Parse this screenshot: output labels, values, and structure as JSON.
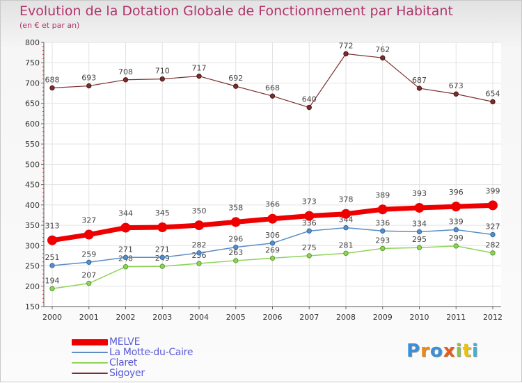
{
  "chart_data": {
    "type": "line",
    "title": "Evolution de la Dotation Globale de Fonctionnement par Habitant",
    "subtitle": "(en € et par an)",
    "xlabel": "",
    "ylabel": "",
    "ylim": [
      150,
      800
    ],
    "yticks": [
      150,
      200,
      250,
      300,
      350,
      400,
      450,
      500,
      550,
      600,
      650,
      700,
      750,
      800
    ],
    "categories": [
      "2000",
      "2001",
      "2002",
      "2003",
      "2004",
      "2005",
      "2006",
      "2007",
      "2008",
      "2009",
      "2010",
      "2011",
      "2012"
    ],
    "grid": true,
    "legend_position": "bottom-left",
    "series": [
      {
        "name": "Sigoyer",
        "color": "#7a2e2e",
        "values": [
          688,
          693,
          708,
          710,
          717,
          692,
          668,
          640,
          772,
          762,
          687,
          673,
          654
        ]
      },
      {
        "name": "Claret",
        "color": "#8fd35a",
        "values": [
          194,
          207,
          248,
          249,
          256,
          263,
          269,
          275,
          281,
          293,
          295,
          299,
          282
        ]
      },
      {
        "name": "La Motte-du-Caire",
        "color": "#5b8ec5",
        "values": [
          251,
          259,
          271,
          271,
          282,
          296,
          306,
          336,
          344,
          336,
          334,
          339,
          327
        ]
      },
      {
        "name": "MELVE",
        "color": "#ee0000",
        "values": [
          313,
          327,
          344,
          345,
          350,
          358,
          366,
          373,
          378,
          389,
          393,
          396,
          399
        ]
      }
    ]
  },
  "legend": {
    "items": [
      {
        "name": "MELVE",
        "color": "#ee0000"
      },
      {
        "name": "La Motte-du-Caire",
        "color": "#5b8ec5"
      },
      {
        "name": "Claret",
        "color": "#8fd35a"
      },
      {
        "name": "Sigoyer",
        "color": "#7a2e2e"
      }
    ]
  },
  "logo": {
    "text": "Proxiti",
    "colors": [
      "#3b8fd9",
      "#e88a1a",
      "#3b8fd9",
      "#e85a1a",
      "#8fc43a",
      "#e8c21a",
      "#3bb3d9"
    ]
  }
}
